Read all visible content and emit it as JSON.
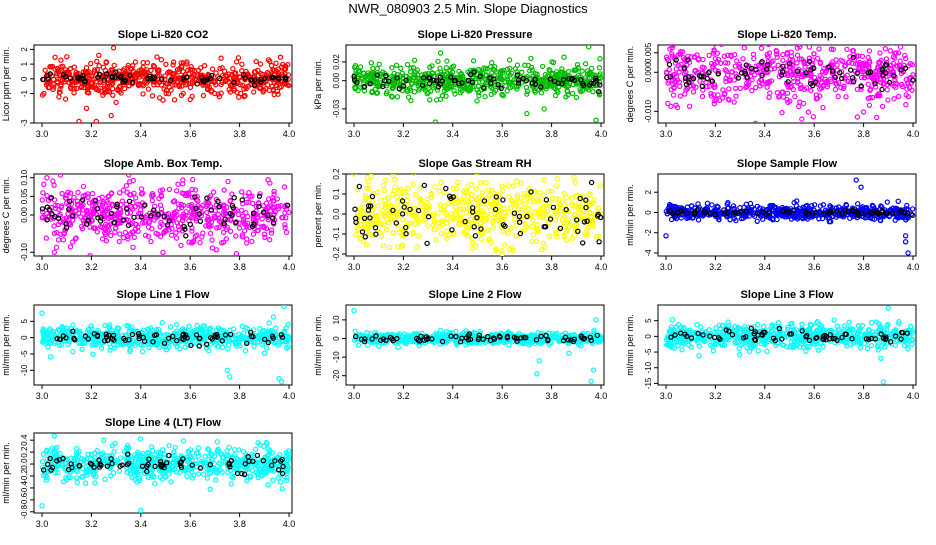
{
  "page": {
    "title": "NWR_080903  2.5 Min. Slope Diagnostics"
  },
  "chart_data": [
    {
      "type": "scatter",
      "title": "Slope Li-820 CO2",
      "ylabel": "Licor ppm per min.",
      "xlim": [
        3.0,
        4.0
      ],
      "ylim": [
        -3,
        2.3
      ],
      "xticks": [
        "3.0",
        "3.2",
        "3.4",
        "3.6",
        "3.8",
        "4.0"
      ],
      "yticks": [
        {
          "v": -3,
          "label": "-3"
        },
        {
          "v": -1,
          "label": "-1"
        },
        {
          "v": 0,
          "label": "0"
        },
        {
          "v": 1,
          "label": "1"
        },
        {
          "v": 2,
          "label": "2"
        }
      ],
      "series": [
        {
          "color": "#ff0000",
          "count": 600,
          "spread": 0.55,
          "outliers": [
            [
              3.23,
              1.6
            ],
            [
              3.26,
              1.1
            ],
            [
              3.29,
              2.1
            ],
            [
              3.18,
              -2.0
            ],
            [
              3.28,
              -2.5
            ],
            [
              3.3,
              -1.6
            ],
            [
              3.15,
              -2.9
            ],
            [
              3.6,
              -1.4
            ],
            [
              3.22,
              -2.9
            ]
          ]
        },
        {
          "color": "#000000",
          "count": 70,
          "spread": 0.2
        }
      ]
    },
    {
      "type": "scatter",
      "title": "Slope Li-820 Pressure",
      "ylabel": "kPa per min.",
      "xlim": [
        3.0,
        4.0
      ],
      "ylim": [
        -0.045,
        0.038
      ],
      "xticks": [
        "3.0",
        "3.2",
        "3.4",
        "3.6",
        "3.8",
        "4.0"
      ],
      "yticks": [
        {
          "v": -0.03,
          "label": "-0.03"
        },
        {
          "v": 0,
          "label": "0.00"
        },
        {
          "v": 0.02,
          "label": "0.02"
        }
      ],
      "series": [
        {
          "color": "#00bb00",
          "count": 600,
          "spread": 0.008,
          "outliers": [
            [
              3.33,
              -0.044
            ],
            [
              3.63,
              0.022
            ],
            [
              3.98,
              -0.042
            ],
            [
              3.95,
              0.036
            ],
            [
              3.77,
              -0.03
            ],
            [
              3.7,
              -0.035
            ],
            [
              3.85,
              0.025
            ]
          ]
        },
        {
          "color": "#000000",
          "count": 70,
          "spread": 0.004
        }
      ]
    },
    {
      "type": "scatter",
      "title": "Slope Li-820 Temp.",
      "ylabel": "degrees C per min.",
      "xlim": [
        3.0,
        4.0
      ],
      "ylim": [
        -0.013,
        0.007
      ],
      "xticks": [
        "3.0",
        "3.2",
        "3.4",
        "3.6",
        "3.8",
        "4.0"
      ],
      "yticks": [
        {
          "v": -0.01,
          "label": "-0.010"
        },
        {
          "v": 0,
          "label": "0.000"
        },
        {
          "v": 0.005,
          "label": "0.005"
        }
      ],
      "series": [
        {
          "color": "#ff00ff",
          "count": 600,
          "spread": 0.004,
          "outliers": [
            [
              3.55,
              -0.012
            ],
            [
              3.62,
              0.006
            ],
            [
              3.58,
              0.0065
            ]
          ]
        },
        {
          "color": "#000000",
          "count": 70,
          "spread": 0.002
        }
      ]
    },
    {
      "type": "scatter",
      "title": "Slope Amb. Box Temp.",
      "ylabel": "degrees C per min.",
      "xlim": [
        3.0,
        4.0
      ],
      "ylim": [
        -0.11,
        0.11
      ],
      "xticks": [
        "3.0",
        "3.2",
        "3.4",
        "3.6",
        "3.8",
        "4.0"
      ],
      "yticks": [
        {
          "v": -0.1,
          "label": "-0.10"
        },
        {
          "v": 0,
          "label": "0.00"
        },
        {
          "v": 0.05,
          "label": "0.05"
        },
        {
          "v": 0.1,
          "label": "0.10"
        }
      ],
      "series": [
        {
          "color": "#ff00ff",
          "count": 600,
          "spread": 0.04,
          "outliers": [
            [
              3.05,
              -0.1
            ],
            [
              3.49,
              -0.1
            ],
            [
              3.02,
              0.1
            ]
          ]
        },
        {
          "color": "#000000",
          "count": 70,
          "spread": 0.025
        }
      ]
    },
    {
      "type": "scatter",
      "title": "Slope Gas Stream RH",
      "ylabel": "percent per min.",
      "xlim": [
        3.0,
        4.0
      ],
      "ylim": [
        -0.21,
        0.2
      ],
      "xticks": [
        "3.0",
        "3.2",
        "3.4",
        "3.6",
        "3.8",
        "4.0"
      ],
      "yticks": [
        {
          "v": -0.2,
          "label": "-0.2"
        },
        {
          "v": -0.1,
          "label": "-0.1"
        },
        {
          "v": 0,
          "label": "0.0"
        },
        {
          "v": 0.1,
          "label": "0.1"
        },
        {
          "v": 0.2,
          "label": "0.2"
        }
      ],
      "series": [
        {
          "color": "#ffff00",
          "count": 600,
          "spread": 0.075,
          "outliers": [
            [
              3.0,
              0.2
            ],
            [
              3.6,
              -0.2
            ]
          ]
        },
        {
          "color": "#000000",
          "count": 70,
          "spread": 0.06
        }
      ]
    },
    {
      "type": "scatter",
      "title": "Slope Sample Flow",
      "ylabel": "ml/min per min.",
      "xlim": [
        3.0,
        4.0
      ],
      "ylim": [
        -4.3,
        3.8
      ],
      "xticks": [
        "3.0",
        "3.2",
        "3.4",
        "3.6",
        "3.8",
        "4.0"
      ],
      "yticks": [
        {
          "v": -4,
          "label": "-4"
        },
        {
          "v": -2,
          "label": "-2"
        },
        {
          "v": 0,
          "label": "0"
        },
        {
          "v": 2,
          "label": "2"
        }
      ],
      "series": [
        {
          "color": "#0000ff",
          "count": 600,
          "spread": 0.35,
          "outliers": [
            [
              3.77,
              3.2
            ],
            [
              3.79,
              2.5
            ],
            [
              3.97,
              -2.3
            ],
            [
              3.98,
              -4.0
            ],
            [
              3.97,
              -2.9
            ],
            [
              3.94,
              1.1
            ],
            [
              3.0,
              -2.3
            ]
          ]
        },
        {
          "color": "#000000",
          "count": 70,
          "spread": 0.15
        }
      ]
    },
    {
      "type": "scatter",
      "title": "Slope Line 1 Flow",
      "ylabel": "ml/min per min.",
      "xlim": [
        3.0,
        4.0
      ],
      "ylim": [
        -14.5,
        10
      ],
      "xticks": [
        "3.0",
        "3.2",
        "3.4",
        "3.6",
        "3.8",
        "4.0"
      ],
      "yticks": [
        {
          "v": -10,
          "label": "-10"
        },
        {
          "v": -5,
          "label": "-5"
        },
        {
          "v": 0,
          "label": "0"
        },
        {
          "v": 5,
          "label": "5"
        }
      ],
      "series": [
        {
          "color": "#00ffff",
          "count": 600,
          "spread": 1.7,
          "outliers": [
            [
              3.75,
              -10
            ],
            [
              3.76,
              -12
            ],
            [
              3.96,
              -12.5
            ],
            [
              3.97,
              -13.5
            ],
            [
              3.98,
              9.5
            ],
            [
              3.92,
              4.5
            ],
            [
              3.0,
              7.5
            ]
          ]
        },
        {
          "color": "#000000",
          "count": 70,
          "spread": 1.0
        }
      ]
    },
    {
      "type": "scatter",
      "title": "Slope Line 2 Flow",
      "ylabel": "ml/min per min.",
      "xlim": [
        3.0,
        4.0
      ],
      "ylim": [
        -25,
        18
      ],
      "xticks": [
        "3.0",
        "3.2",
        "3.4",
        "3.6",
        "3.8",
        "4.0"
      ],
      "yticks": [
        {
          "v": -20,
          "label": "-20"
        },
        {
          "v": -10,
          "label": "-10"
        },
        {
          "v": 0,
          "label": "0"
        },
        {
          "v": 10,
          "label": "10"
        }
      ],
      "series": [
        {
          "color": "#00ffff",
          "count": 600,
          "spread": 1.5,
          "outliers": [
            [
              3.74,
              -19
            ],
            [
              3.75,
              -12
            ],
            [
              3.96,
              -23
            ],
            [
              3.97,
              -17
            ],
            [
              3.98,
              10
            ],
            [
              3.0,
              15
            ],
            [
              3.87,
              -8
            ]
          ]
        },
        {
          "color": "#000000",
          "count": 70,
          "spread": 1.0
        }
      ]
    },
    {
      "type": "scatter",
      "title": "Slope Line 3 Flow",
      "ylabel": "ml/min per min.",
      "xlim": [
        3.0,
        4.0
      ],
      "ylim": [
        -15.5,
        10
      ],
      "xticks": [
        "3.0",
        "3.2",
        "3.4",
        "3.6",
        "3.8",
        "4.0"
      ],
      "yticks": [
        {
          "v": -15,
          "label": "-15"
        },
        {
          "v": -10,
          "label": "-10"
        },
        {
          "v": -5,
          "label": "-5"
        },
        {
          "v": 0,
          "label": "0"
        },
        {
          "v": 5,
          "label": "5"
        }
      ],
      "series": [
        {
          "color": "#00ffff",
          "count": 600,
          "spread": 1.9,
          "outliers": [
            [
              3.87,
              -7
            ],
            [
              3.88,
              -14.5
            ],
            [
              3.9,
              9
            ],
            [
              3.98,
              -4
            ]
          ]
        },
        {
          "color": "#000000",
          "count": 70,
          "spread": 1.1
        }
      ]
    },
    {
      "type": "scatter",
      "title": "Slope Line 4 (LT) Flow",
      "ylabel": "ml/min per min.",
      "xlim": [
        3.0,
        4.0
      ],
      "ylim": [
        -0.82,
        0.52
      ],
      "xticks": [
        "3.0",
        "3.2",
        "3.4",
        "3.6",
        "3.8",
        "4.0"
      ],
      "yticks": [
        {
          "v": -0.8,
          "label": "-0.8"
        },
        {
          "v": -0.6,
          "label": "-0.6"
        },
        {
          "v": -0.4,
          "label": "-0.4"
        },
        {
          "v": -0.2,
          "label": "-0.2"
        },
        {
          "v": 0,
          "label": "0.0"
        },
        {
          "v": 0.2,
          "label": "0.2"
        },
        {
          "v": 0.4,
          "label": "0.4"
        }
      ],
      "series": [
        {
          "color": "#00ffff",
          "count": 600,
          "spread": 0.14,
          "outliers": [
            [
              3.05,
              0.47
            ],
            [
              3.4,
              -0.78
            ],
            [
              3.0,
              -0.7
            ],
            [
              3.25,
              0.4
            ]
          ]
        },
        {
          "color": "#000000",
          "count": 70,
          "spread": 0.08
        }
      ]
    }
  ]
}
